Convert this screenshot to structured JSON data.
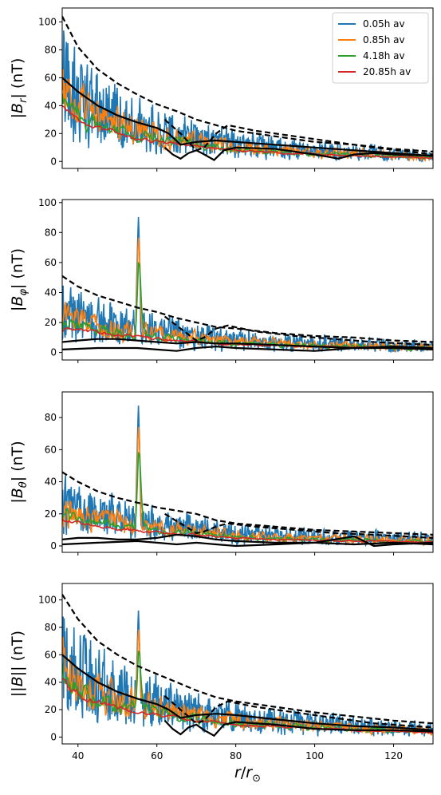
{
  "chart_data": [
    {
      "type": "line",
      "ylabel": "|B_r| (nT)",
      "ylabel_parts": {
        "bar_left": "|",
        "symbol": "B",
        "sub": "r",
        "bar_right": "|",
        "unit": " (nT)"
      },
      "xlim": [
        36,
        130
      ],
      "ylim": [
        -5,
        110
      ],
      "yticks": [
        0,
        20,
        40,
        60,
        80,
        100
      ],
      "legend": {
        "position": "top-right",
        "entries": [
          "0.05h av",
          "0.85h av",
          "4.18h av",
          "20.85h av"
        ]
      },
      "series": [
        {
          "name": "0.05h av",
          "color": "#1f77b4",
          "amplitude": 1.0,
          "spread": 1.0
        },
        {
          "name": "0.85h av",
          "color": "#ff7f0e",
          "amplitude": 0.85,
          "spread": 0.75
        },
        {
          "name": "4.18h av",
          "color": "#2ca02c",
          "amplitude": 0.72,
          "spread": 0.5
        },
        {
          "name": "20.85h av",
          "color": "#d62728",
          "amplitude": 0.62,
          "spread": 0.3
        }
      ],
      "upper_dashed": {
        "x": [
          36,
          40,
          45,
          50,
          55,
          60,
          65,
          70,
          75,
          80,
          90,
          100,
          110,
          120,
          130
        ],
        "y": [
          104,
          82,
          66,
          56,
          48,
          41,
          36,
          30,
          26,
          22,
          18,
          14,
          12,
          9,
          7
        ]
      },
      "lower_dashed": {
        "x": [
          62,
          66,
          70,
          72,
          75,
          78,
          85,
          95,
          105,
          115,
          130
        ],
        "y": [
          30,
          20,
          8,
          10,
          20,
          26,
          22,
          18,
          14,
          10,
          5
        ]
      },
      "upper_solid": {
        "x": [
          36,
          40,
          45,
          50,
          55,
          60,
          63,
          66,
          70,
          75,
          80,
          90,
          100,
          110,
          120,
          130
        ],
        "y": [
          60,
          50,
          40,
          33,
          28,
          24,
          20,
          12,
          14,
          15,
          14,
          12,
          10,
          8,
          6,
          4
        ]
      },
      "lower_solid": {
        "x": [
          62,
          64,
          66,
          68,
          70,
          72,
          74.5,
          77,
          80,
          90,
          100,
          106,
          110,
          115,
          120,
          130
        ],
        "y": [
          10,
          5,
          2,
          6,
          8,
          5,
          1,
          8,
          10,
          9,
          5,
          2,
          5,
          6,
          5,
          4
        ]
      }
    },
    {
      "type": "line",
      "ylabel": "|B_φ| (nT)",
      "ylabel_parts": {
        "bar_left": "|",
        "symbol": "B",
        "sub": "φ",
        "bar_right": "|",
        "unit": " (nT)"
      },
      "xlim": [
        36,
        130
      ],
      "ylim": [
        -5,
        102
      ],
      "yticks": [
        0,
        20,
        40,
        60,
        80,
        100
      ],
      "series": [
        {
          "name": "0.05h av",
          "color": "#1f77b4",
          "amplitude": 1.0,
          "spread": 1.0
        },
        {
          "name": "0.85h av",
          "color": "#ff7f0e",
          "amplitude": 0.85,
          "spread": 0.75
        },
        {
          "name": "4.18h av",
          "color": "#2ca02c",
          "amplitude": 0.72,
          "spread": 0.5
        },
        {
          "name": "20.85h av",
          "color": "#d62728",
          "amplitude": 0.62,
          "spread": 0.3
        }
      ],
      "spike": {
        "x": 55.3,
        "y": 94
      },
      "upper_dashed": {
        "x": [
          36,
          40,
          45,
          50,
          55,
          60,
          65,
          70,
          75,
          80,
          90,
          100,
          110,
          120,
          130
        ],
        "y": [
          51,
          44,
          38,
          34,
          30,
          27,
          23,
          20,
          17,
          16,
          13,
          11,
          10,
          8,
          7
        ]
      },
      "lower_dashed": {
        "x": [
          62,
          66,
          70,
          72,
          75,
          78,
          85,
          95,
          105,
          115,
          130
        ],
        "y": [
          24,
          16,
          8,
          10,
          16,
          18,
          14,
          11,
          9,
          7,
          5
        ]
      },
      "upper_solid": {
        "x": [
          36,
          40,
          45,
          50,
          55,
          60,
          65,
          70,
          75,
          80,
          90,
          100,
          110,
          120,
          130
        ],
        "y": [
          7,
          8,
          9,
          9,
          8,
          7,
          6,
          7,
          6,
          6,
          5,
          4,
          3,
          3,
          2
        ]
      },
      "lower_solid": {
        "x": [
          36,
          45,
          55,
          60,
          65,
          70,
          75,
          80,
          90,
          100,
          105,
          110,
          120,
          130
        ],
        "y": [
          2,
          3,
          3,
          2,
          1,
          3,
          4,
          3,
          2,
          1,
          2,
          3,
          4,
          3
        ]
      }
    },
    {
      "type": "line",
      "ylabel": "|B_θ| (nT)",
      "ylabel_parts": {
        "bar_left": "|",
        "symbol": "B",
        "sub": "θ",
        "bar_right": "|",
        "unit": " (nT)"
      },
      "xlim": [
        36,
        130
      ],
      "ylim": [
        -4,
        96
      ],
      "yticks": [
        0,
        20,
        40,
        60,
        80
      ],
      "series": [
        {
          "name": "0.05h av",
          "color": "#1f77b4",
          "amplitude": 1.0,
          "spread": 1.0
        },
        {
          "name": "0.85h av",
          "color": "#ff7f0e",
          "amplitude": 0.85,
          "spread": 0.75
        },
        {
          "name": "4.18h av",
          "color": "#2ca02c",
          "amplitude": 0.72,
          "spread": 0.5
        },
        {
          "name": "20.85h av",
          "color": "#d62728",
          "amplitude": 0.62,
          "spread": 0.3
        }
      ],
      "spike": {
        "x": 55.3,
        "y": 91
      },
      "upper_dashed": {
        "x": [
          36,
          40,
          45,
          50,
          55,
          60,
          65,
          70,
          75,
          80,
          90,
          100,
          110,
          120,
          130
        ],
        "y": [
          46,
          40,
          34,
          30,
          27,
          24,
          22,
          20,
          16,
          14,
          12,
          10,
          9,
          8,
          7
        ]
      },
      "lower_dashed": {
        "x": [
          62,
          66,
          70,
          72,
          75,
          78,
          85,
          95,
          105,
          115,
          130
        ],
        "y": [
          20,
          14,
          8,
          9,
          12,
          14,
          12,
          10,
          8,
          7,
          5
        ]
      },
      "upper_solid": {
        "x": [
          36,
          40,
          45,
          50,
          55,
          60,
          65,
          70,
          75,
          80,
          90,
          100,
          110,
          120,
          130
        ],
        "y": [
          4,
          5,
          5,
          4,
          4,
          5,
          7,
          6,
          4,
          3,
          2,
          2,
          1,
          2,
          1
        ]
      },
      "lower_solid": {
        "x": [
          36,
          45,
          55,
          60,
          65,
          70,
          75,
          80,
          90,
          100,
          110,
          115,
          120,
          130
        ],
        "y": [
          1,
          2,
          3,
          2,
          1,
          2,
          1,
          0,
          1,
          2,
          6,
          0,
          1,
          2
        ]
      }
    },
    {
      "type": "line",
      "ylabel": "||B|| (nT)",
      "ylabel_parts": {
        "bar_left": "||",
        "symbol": "B",
        "sub": "",
        "bar_right": "||",
        "unit": " (nT)"
      },
      "xlabel": "r/r_⊙",
      "xlabel_parts": {
        "num": "r",
        "slash": "/",
        "den": "r",
        "sub": "⊙"
      },
      "xlim": [
        36,
        130
      ],
      "xticks": [
        40,
        60,
        80,
        100,
        120
      ],
      "ylim": [
        -5,
        112
      ],
      "yticks": [
        0,
        20,
        40,
        60,
        80,
        100
      ],
      "series": [
        {
          "name": "0.05h av",
          "color": "#1f77b4",
          "amplitude": 1.0,
          "spread": 1.0
        },
        {
          "name": "0.85h av",
          "color": "#ff7f0e",
          "amplitude": 0.85,
          "spread": 0.75
        },
        {
          "name": "4.18h av",
          "color": "#2ca02c",
          "amplitude": 0.72,
          "spread": 0.5
        },
        {
          "name": "20.85h av",
          "color": "#d62728",
          "amplitude": 0.62,
          "spread": 0.3
        }
      ],
      "spike": {
        "x": 55.3,
        "y": 96
      },
      "upper_dashed": {
        "x": [
          36,
          40,
          45,
          50,
          55,
          60,
          65,
          70,
          75,
          80,
          90,
          100,
          110,
          120,
          130
        ],
        "y": [
          104,
          86,
          70,
          60,
          52,
          46,
          40,
          34,
          29,
          26,
          22,
          18,
          15,
          12,
          10
        ]
      },
      "lower_dashed": {
        "x": [
          62,
          66,
          70,
          72,
          75,
          78,
          85,
          95,
          105,
          115,
          130
        ],
        "y": [
          30,
          20,
          10,
          12,
          22,
          26,
          22,
          18,
          14,
          10,
          7
        ]
      },
      "upper_solid": {
        "x": [
          36,
          40,
          45,
          50,
          55,
          60,
          63,
          66,
          70,
          75,
          80,
          90,
          100,
          110,
          120,
          130
        ],
        "y": [
          60,
          50,
          40,
          33,
          28,
          24,
          20,
          14,
          16,
          17,
          16,
          13,
          10,
          8,
          7,
          5
        ]
      },
      "lower_solid": {
        "x": [
          62,
          64,
          66,
          68,
          70,
          72,
          74.5,
          77,
          80,
          90,
          100,
          110,
          120,
          130
        ],
        "y": [
          12,
          6,
          2,
          7,
          9,
          5,
          1,
          9,
          11,
          9,
          6,
          5,
          5,
          4
        ]
      }
    }
  ]
}
